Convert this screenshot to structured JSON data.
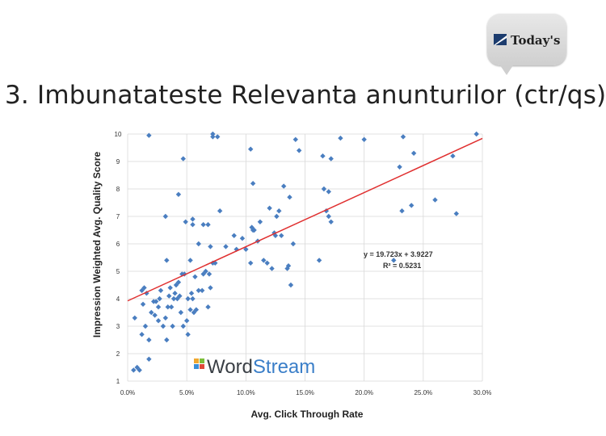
{
  "slide": {
    "title": "3. Imbunatateste Relevanta anunturilor (ctr/qs)",
    "logo_text": "Today's"
  },
  "watermark": {
    "part1": "Word",
    "part2": "Stream"
  },
  "chart_data": {
    "type": "scatter",
    "xlabel": "Avg. Click Through Rate",
    "ylabel": "Impression Weighted Avg. Quality Score",
    "xlim": [
      0,
      0.3
    ],
    "ylim": [
      1,
      10
    ],
    "x_ticks": [
      0,
      0.05,
      0.1,
      0.15,
      0.2,
      0.25,
      0.3
    ],
    "x_tick_labels": [
      "0.0%",
      "5.0%",
      "10.0%",
      "15.0%",
      "20.0%",
      "25.0%",
      "30.0%"
    ],
    "y_ticks": [
      1,
      2,
      3,
      4,
      5,
      6,
      7,
      8,
      9,
      10
    ],
    "y_tick_labels": [
      "1",
      "2",
      "3",
      "4",
      "5",
      "6",
      "7",
      "8",
      "9",
      "10"
    ],
    "grid": true,
    "trendline": {
      "slope": 19.723,
      "intercept": 3.9227,
      "equation": "y = 19.723x + 3.9227",
      "r_squared": "R² = 0.5231",
      "color": "#e03030"
    },
    "marker_color": "#4a7ec0",
    "points": [
      [
        0.005,
        1.4
      ],
      [
        0.008,
        1.5
      ],
      [
        0.01,
        1.4
      ],
      [
        0.006,
        3.3
      ],
      [
        0.012,
        2.7
      ],
      [
        0.015,
        3.0
      ],
      [
        0.018,
        2.5
      ],
      [
        0.012,
        4.3
      ],
      [
        0.014,
        4.4
      ],
      [
        0.016,
        4.2
      ],
      [
        0.013,
        3.8
      ],
      [
        0.018,
        1.8
      ],
      [
        0.02,
        3.5
      ],
      [
        0.022,
        3.9
      ],
      [
        0.024,
        3.9
      ],
      [
        0.023,
        3.4
      ],
      [
        0.026,
        3.2
      ],
      [
        0.026,
        3.7
      ],
      [
        0.027,
        4.0
      ],
      [
        0.028,
        4.3
      ],
      [
        0.03,
        3.0
      ],
      [
        0.032,
        3.3
      ],
      [
        0.033,
        2.5
      ],
      [
        0.034,
        3.7
      ],
      [
        0.035,
        4.1
      ],
      [
        0.036,
        4.4
      ],
      [
        0.037,
        3.7
      ],
      [
        0.038,
        3.0
      ],
      [
        0.039,
        4.0
      ],
      [
        0.04,
        4.2
      ],
      [
        0.041,
        4.5
      ],
      [
        0.042,
        4.0
      ],
      [
        0.043,
        4.6
      ],
      [
        0.044,
        4.1
      ],
      [
        0.045,
        3.5
      ],
      [
        0.046,
        4.9
      ],
      [
        0.047,
        3.0
      ],
      [
        0.048,
        4.9
      ],
      [
        0.05,
        3.2
      ],
      [
        0.051,
        4.0
      ],
      [
        0.051,
        2.7
      ],
      [
        0.053,
        3.6
      ],
      [
        0.054,
        4.2
      ],
      [
        0.055,
        4.0
      ],
      [
        0.056,
        3.5
      ],
      [
        0.057,
        4.8
      ],
      [
        0.058,
        3.6
      ],
      [
        0.06,
        4.3
      ],
      [
        0.063,
        4.3
      ],
      [
        0.064,
        4.9
      ],
      [
        0.066,
        5.0
      ],
      [
        0.068,
        3.7
      ],
      [
        0.069,
        4.9
      ],
      [
        0.07,
        4.4
      ],
      [
        0.072,
        5.3
      ],
      [
        0.074,
        5.3
      ],
      [
        0.032,
        7.0
      ],
      [
        0.033,
        5.4
      ],
      [
        0.043,
        7.8
      ],
      [
        0.047,
        9.1
      ],
      [
        0.049,
        6.8
      ],
      [
        0.053,
        5.4
      ],
      [
        0.055,
        6.7
      ],
      [
        0.055,
        6.9
      ],
      [
        0.06,
        6.0
      ],
      [
        0.064,
        6.7
      ],
      [
        0.068,
        6.7
      ],
      [
        0.07,
        5.9
      ],
      [
        0.072,
        9.9
      ],
      [
        0.078,
        7.2
      ],
      [
        0.076,
        9.9
      ],
      [
        0.018,
        9.95
      ],
      [
        0.072,
        10.0
      ],
      [
        0.083,
        5.9
      ],
      [
        0.09,
        6.3
      ],
      [
        0.092,
        5.8
      ],
      [
        0.097,
        6.2
      ],
      [
        0.1,
        5.8
      ],
      [
        0.104,
        5.3
      ],
      [
        0.105,
        6.6
      ],
      [
        0.106,
        6.5
      ],
      [
        0.107,
        6.5
      ],
      [
        0.11,
        6.1
      ],
      [
        0.112,
        6.8
      ],
      [
        0.115,
        5.4
      ],
      [
        0.118,
        5.3
      ],
      [
        0.12,
        7.3
      ],
      [
        0.122,
        5.1
      ],
      [
        0.124,
        6.4
      ],
      [
        0.125,
        6.3
      ],
      [
        0.126,
        7.0
      ],
      [
        0.128,
        7.2
      ],
      [
        0.13,
        6.3
      ],
      [
        0.132,
        8.1
      ],
      [
        0.135,
        5.1
      ],
      [
        0.136,
        5.2
      ],
      [
        0.137,
        7.7
      ],
      [
        0.138,
        4.5
      ],
      [
        0.14,
        6.0
      ],
      [
        0.142,
        9.8
      ],
      [
        0.145,
        9.4
      ],
      [
        0.104,
        9.45
      ],
      [
        0.106,
        8.2
      ],
      [
        0.162,
        5.4
      ],
      [
        0.165,
        9.2
      ],
      [
        0.166,
        8.0
      ],
      [
        0.168,
        7.2
      ],
      [
        0.17,
        7.9
      ],
      [
        0.17,
        7.0
      ],
      [
        0.172,
        6.8
      ],
      [
        0.172,
        9.1
      ],
      [
        0.18,
        9.85
      ],
      [
        0.2,
        9.8
      ],
      [
        0.225,
        5.4
      ],
      [
        0.23,
        8.8
      ],
      [
        0.232,
        7.2
      ],
      [
        0.233,
        9.9
      ],
      [
        0.24,
        7.4
      ],
      [
        0.242,
        9.3
      ],
      [
        0.26,
        7.6
      ],
      [
        0.275,
        9.2
      ],
      [
        0.278,
        7.1
      ],
      [
        0.295,
        10.0
      ]
    ]
  }
}
